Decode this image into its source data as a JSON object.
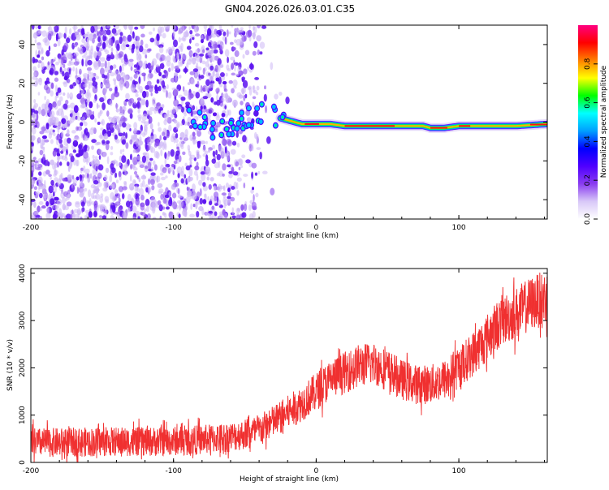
{
  "title": "GN04.2026.026.03.01.C35",
  "chart_data": [
    {
      "type": "heatmap",
      "name": "spectrogram",
      "xlabel": "Height of straight line (km)",
      "ylabel": "Frequency (Hz)",
      "xlim": [
        -200,
        162
      ],
      "ylim": [
        -50,
        50
      ],
      "xticks": [
        -200,
        -100,
        0,
        100
      ],
      "yticks": [
        -40,
        -20,
        0,
        20,
        40
      ],
      "colorbar": {
        "label": "Normalized spectral amplitude",
        "range": [
          0,
          1
        ],
        "ticks": [
          "0.0",
          "0.2",
          "0.4",
          "0.6",
          "0.8"
        ],
        "colors": [
          "#ffffff",
          "#d8c8f8",
          "#8a3cf0",
          "#4f00ff",
          "#0000ff",
          "#00a0ff",
          "#00ffff",
          "#00ff00",
          "#ffff00",
          "#ff8000",
          "#ff0000",
          "#ff0080"
        ]
      },
      "noise_region_x": [
        -200,
        -40
      ],
      "signal_ridge": [
        {
          "x": -90,
          "f": 4
        },
        {
          "x": -80,
          "f": 0
        },
        {
          "x": -70,
          "f": -4
        },
        {
          "x": -60,
          "f": -2
        },
        {
          "x": -50,
          "f": 2
        },
        {
          "x": -40,
          "f": 5
        },
        {
          "x": -30,
          "f": 3
        },
        {
          "x": -20,
          "f": 1
        },
        {
          "x": -10,
          "f": -1
        },
        {
          "x": 0,
          "f": -1
        },
        {
          "x": 10,
          "f": -1
        },
        {
          "x": 20,
          "f": -2
        },
        {
          "x": 40,
          "f": -2
        },
        {
          "x": 60,
          "f": -2
        },
        {
          "x": 75,
          "f": -2
        },
        {
          "x": 80,
          "f": -3
        },
        {
          "x": 90,
          "f": -3
        },
        {
          "x": 100,
          "f": -2
        },
        {
          "x": 120,
          "f": -2
        },
        {
          "x": 140,
          "f": -2
        },
        {
          "x": 162,
          "f": -1
        }
      ]
    },
    {
      "type": "line",
      "name": "snr",
      "xlabel": "Height of straight line (km)",
      "ylabel": "SNR (10 * v/v)",
      "xlim": [
        -200,
        162
      ],
      "ylim": [
        0,
        4100
      ],
      "xticks": [
        -200,
        -100,
        0,
        100
      ],
      "yticks": [
        0,
        1000,
        2000,
        3000,
        4000
      ],
      "color": "#f03030",
      "series": [
        {
          "name": "SNR",
          "x": [
            -200,
            -180,
            -160,
            -140,
            -120,
            -100,
            -80,
            -60,
            -50,
            -40,
            -30,
            -20,
            -10,
            0,
            10,
            20,
            30,
            40,
            50,
            60,
            70,
            80,
            90,
            100,
            110,
            120,
            130,
            140,
            150,
            162
          ],
          "y": [
            420,
            420,
            430,
            440,
            440,
            450,
            480,
            540,
            600,
            680,
            860,
            1050,
            1250,
            1500,
            1750,
            1900,
            2050,
            2100,
            1950,
            1750,
            1650,
            1650,
            1750,
            2000,
            2300,
            2650,
            3000,
            3150,
            3350,
            3500
          ],
          "spread": 450
        }
      ]
    }
  ]
}
